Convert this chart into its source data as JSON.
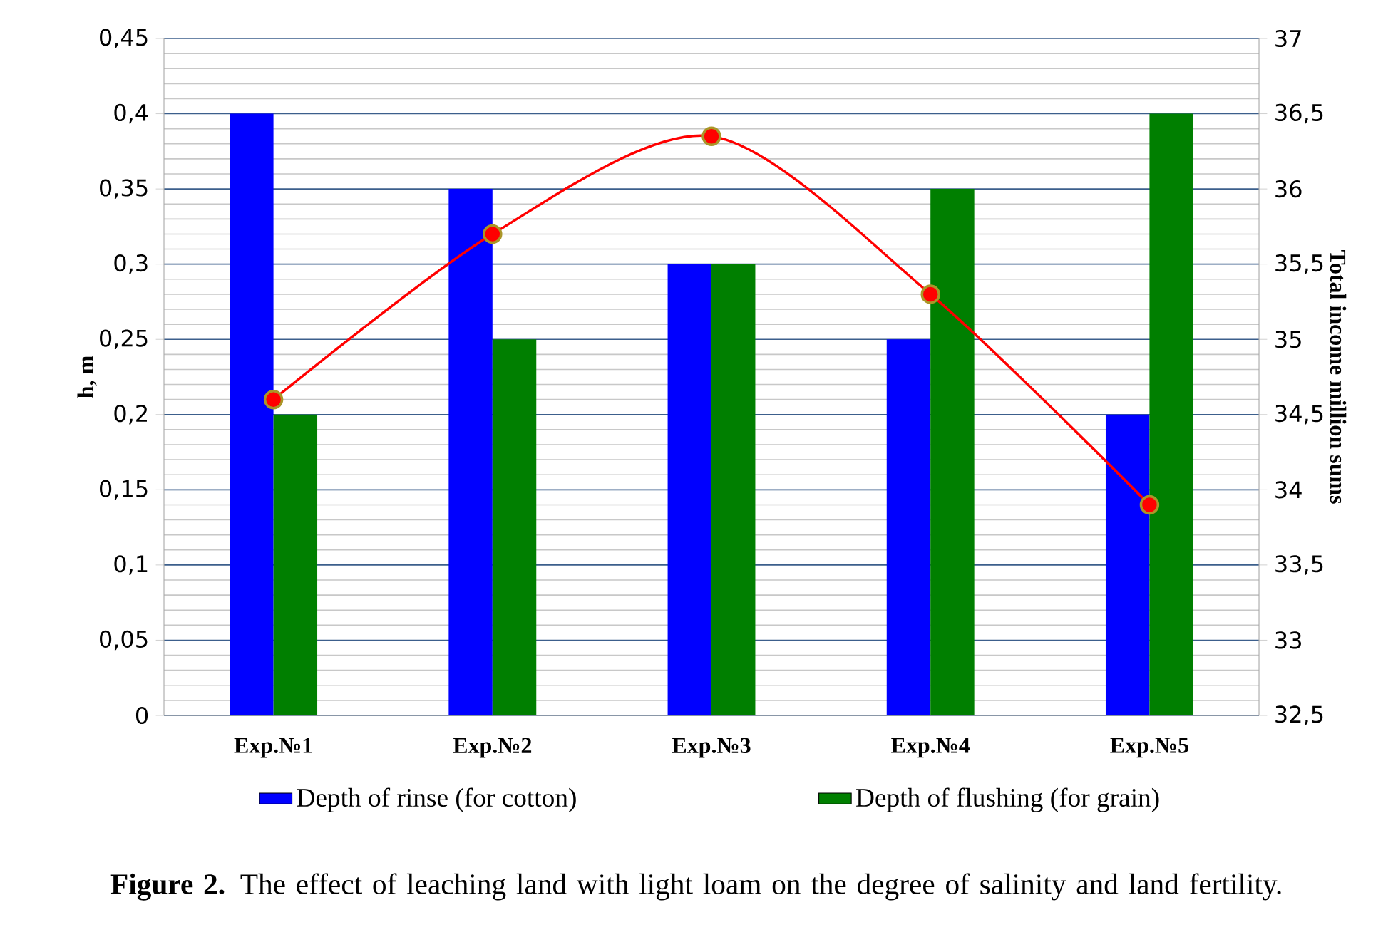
{
  "chart_data": {
    "type": "bar",
    "ylabel": "h, m",
    "y2label": "Total income million sums",
    "categories": [
      "Exp.№1",
      "Exp.№2",
      "Exp.№3",
      "Exp.№4",
      "Exp.№5"
    ],
    "series": [
      {
        "name": "Depth of rinse (for cotton)",
        "color": "#0000ff",
        "values": [
          0.4,
          0.35,
          0.3,
          0.25,
          0.2
        ]
      },
      {
        "name": "Depth of flushing (for grain)",
        "color": "#007f00",
        "values": [
          0.2,
          0.25,
          0.3,
          0.35,
          0.4
        ]
      },
      {
        "type": "line",
        "axis": "y2",
        "color": "#ff0000",
        "marker": "circle",
        "values": [
          34.6,
          35.7,
          36.35,
          35.3,
          33.9
        ]
      }
    ],
    "ylim": [
      0,
      0.45
    ],
    "yticks": [
      0,
      {
        "value": 0.05,
        "label": "0,05"
      },
      {
        "value": 0.1,
        "label": "0,1"
      },
      {
        "value": 0.15,
        "label": "0,15"
      },
      {
        "value": 0.2,
        "label": "0,2"
      },
      {
        "value": 0.25,
        "label": "0,25"
      },
      {
        "value": 0.3,
        "label": "0,3"
      },
      {
        "value": 0.35,
        "label": "0,35"
      },
      {
        "value": 0.4,
        "label": "0,4"
      },
      {
        "value": 0.45,
        "label": "0,45"
      }
    ],
    "y2lim": [
      32.5,
      37
    ],
    "y2ticks": [
      {
        "value": 32.5,
        "label": "32,5"
      },
      33,
      {
        "value": 33.5,
        "label": "33,5"
      },
      34,
      {
        "value": 34.5,
        "label": "34,5"
      },
      35,
      {
        "value": 35.5,
        "label": "35,5"
      },
      36,
      {
        "value": 36.5,
        "label": "36,5"
      },
      37
    ],
    "grid": "y",
    "legend": "bottom",
    "annotations": [
      "**Figure 2.** The effect of leaching land with light loam on the degree of salinity and land fertility."
    ]
  }
}
